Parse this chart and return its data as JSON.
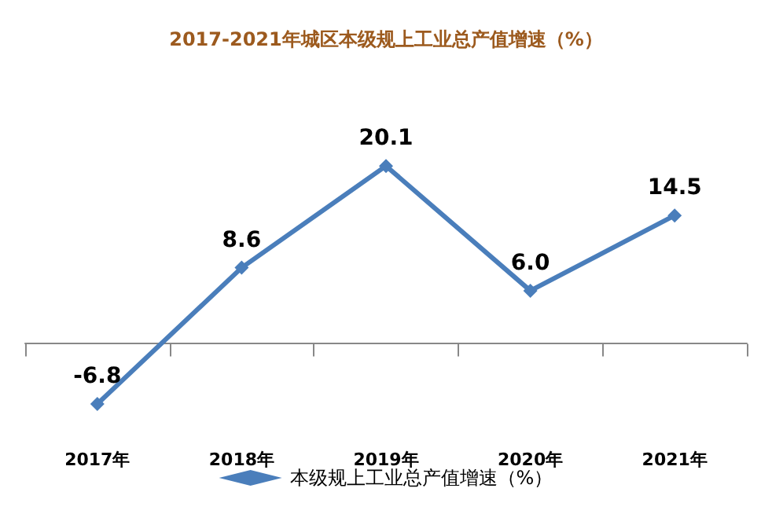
{
  "chart_data": {
    "type": "line",
    "title": "2017-2021年城区本级规上工业总产值增速（%）",
    "categories": [
      "2017年",
      "2018年",
      "2019年",
      "2020年",
      "2021年"
    ],
    "series": [
      {
        "name": "本级规上工业总产值增速（%）",
        "color": "#4a7ebb",
        "values": [
          -6.8,
          8.6,
          20.1,
          6.0,
          14.5
        ],
        "value_labels": [
          "-6.8",
          "8.6",
          "20.1",
          "6.0",
          "14.5"
        ]
      }
    ],
    "marker": "diamond",
    "line_style": "solid",
    "grid": false,
    "legend": "bottom"
  }
}
